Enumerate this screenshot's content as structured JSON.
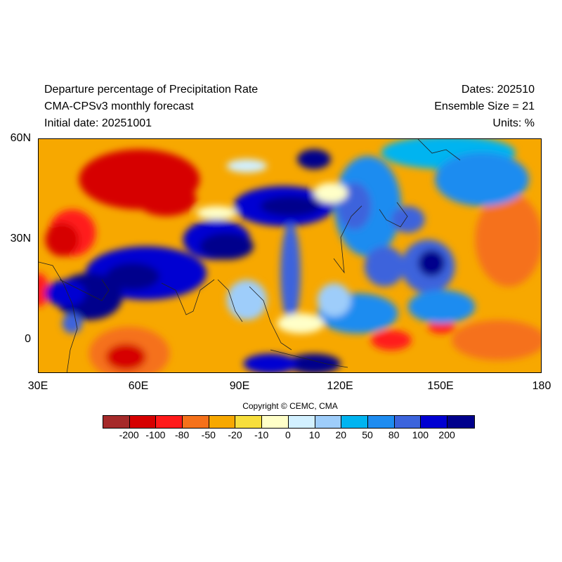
{
  "header": {
    "title": "Departure percentage of Precipitation Rate",
    "model": "CMA-CPSv3 monthly forecast",
    "initial_date": "Initial date: 20251001",
    "dates": "Dates: 202510",
    "ensemble": "Ensemble Size = 21",
    "units": "Units: %"
  },
  "axes": {
    "lat_ticks": [
      "60N",
      "30N",
      "0"
    ],
    "lon_ticks": [
      "30E",
      "60E",
      "90E",
      "120E",
      "150E",
      "180"
    ],
    "lon_range": [
      30,
      180
    ],
    "lat_range": [
      -10,
      60
    ]
  },
  "copyright": "Copyright © CEMC, CMA",
  "colorbar": {
    "colors": [
      "#a52a2a",
      "#d60000",
      "#ff1a1a",
      "#f5711a",
      "#f7a800",
      "#f7de3c",
      "#ffffc8",
      "#d2f0ff",
      "#9ecdfa",
      "#00b4f0",
      "#1e8cf0",
      "#3c64dc",
      "#0000d2",
      "#00008c"
    ],
    "labels": [
      "-200",
      "-100",
      "-80",
      "-50",
      "-20",
      "-10",
      "0",
      "10",
      "20",
      "50",
      "80",
      "100",
      "200"
    ]
  },
  "anomaly_regions": [
    {
      "lon": 60,
      "lat": 48,
      "rx": 18,
      "ry": 9,
      "level": 1
    },
    {
      "lon": 68,
      "lat": 42,
      "rx": 9,
      "ry": 5,
      "level": 1
    },
    {
      "lon": 40,
      "lat": 32,
      "rx": 7,
      "ry": 7,
      "level": 2
    },
    {
      "lon": 37,
      "lat": 30,
      "rx": 5,
      "ry": 5,
      "level": 1
    },
    {
      "lon": 57,
      "lat": -4,
      "rx": 12,
      "ry": 8,
      "level": 3
    },
    {
      "lon": 56,
      "lat": -5,
      "rx": 6,
      "ry": 4,
      "level": 1
    },
    {
      "lon": 167,
      "lat": 0,
      "rx": 14,
      "ry": 6,
      "level": 3
    },
    {
      "lon": 170,
      "lat": 30,
      "rx": 10,
      "ry": 14,
      "level": 3
    },
    {
      "lon": 135,
      "lat": 0,
      "rx": 6,
      "ry": 3,
      "level": 2
    },
    {
      "lon": 150,
      "lat": 4,
      "rx": 4,
      "ry": 2,
      "level": 2
    },
    {
      "lon": 30,
      "lat": 15,
      "rx": 3,
      "ry": 5,
      "level": 2
    },
    {
      "lon": 152,
      "lat": 56,
      "rx": 20,
      "ry": 5,
      "level": 9
    },
    {
      "lon": 162,
      "lat": 48,
      "rx": 14,
      "ry": 8,
      "level": 10
    },
    {
      "lon": 128,
      "lat": 40,
      "rx": 10,
      "ry": 15,
      "level": 10
    },
    {
      "lon": 124,
      "lat": 40,
      "rx": 5,
      "ry": 7,
      "level": 11
    },
    {
      "lon": 140,
      "lat": 36,
      "rx": 5,
      "ry": 4,
      "level": 11
    },
    {
      "lon": 83,
      "lat": 30,
      "rx": 10,
      "ry": 6,
      "level": 12
    },
    {
      "lon": 86,
      "lat": 28,
      "rx": 8,
      "ry": 4,
      "level": 13
    },
    {
      "lon": 103,
      "lat": 40,
      "rx": 15,
      "ry": 6,
      "level": 12
    },
    {
      "lon": 105,
      "lat": 40,
      "rx": 9,
      "ry": 3,
      "level": 13
    },
    {
      "lon": 112,
      "lat": 54,
      "rx": 5,
      "ry": 3,
      "level": 13
    },
    {
      "lon": 62,
      "lat": 20,
      "rx": 18,
      "ry": 8,
      "level": 12
    },
    {
      "lon": 58,
      "lat": 19,
      "rx": 8,
      "ry": 4,
      "level": 13
    },
    {
      "lon": 45,
      "lat": 13,
      "rx": 10,
      "ry": 7,
      "level": 13
    },
    {
      "lon": 38,
      "lat": 14,
      "rx": 6,
      "ry": 4,
      "level": 12
    },
    {
      "lon": 105,
      "lat": 20,
      "rx": 3,
      "ry": 15,
      "level": 11
    },
    {
      "lon": 112,
      "lat": -7,
      "rx": 8,
      "ry": 3,
      "level": 13
    },
    {
      "lon": 99,
      "lat": -7,
      "rx": 8,
      "ry": 3,
      "level": 12
    },
    {
      "lon": 146,
      "lat": 22,
      "rx": 8,
      "ry": 8,
      "level": 11
    },
    {
      "lon": 147,
      "lat": 23,
      "rx": 4,
      "ry": 4,
      "level": 13
    },
    {
      "lon": 150,
      "lat": 10,
      "rx": 10,
      "ry": 5,
      "level": 10
    },
    {
      "lon": 125,
      "lat": 8,
      "rx": 12,
      "ry": 6,
      "level": 10
    },
    {
      "lon": 133,
      "lat": 22,
      "rx": 6,
      "ry": 6,
      "level": 11
    },
    {
      "lon": 40,
      "lat": 5,
      "rx": 3,
      "ry": 3,
      "level": 11
    },
    {
      "lon": 92,
      "lat": 12,
      "rx": 6,
      "ry": 6,
      "level": 8
    },
    {
      "lon": 118,
      "lat": 12,
      "rx": 5,
      "ry": 5,
      "level": 8
    },
    {
      "lon": 117,
      "lat": 44,
      "rx": 5,
      "ry": 3,
      "level": 6
    },
    {
      "lon": 83,
      "lat": 38,
      "rx": 6,
      "ry": 2,
      "level": 6
    },
    {
      "lon": 92,
      "lat": 52,
      "rx": 6,
      "ry": 2,
      "level": 7
    },
    {
      "lon": 108,
      "lat": 5,
      "rx": 7,
      "ry": 3,
      "level": 6
    }
  ]
}
